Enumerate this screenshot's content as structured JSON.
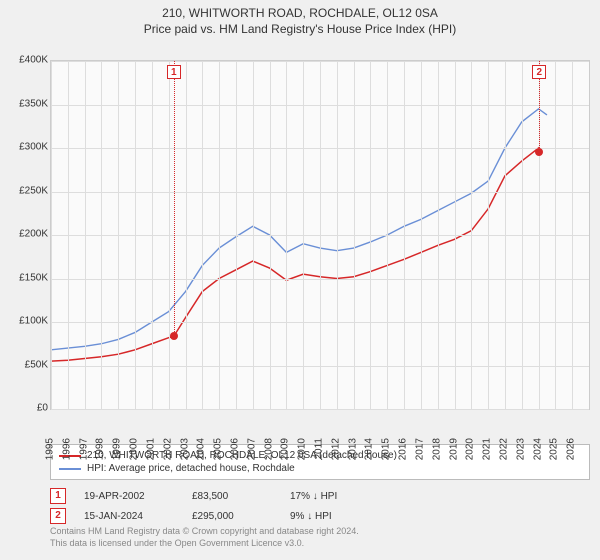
{
  "title_line1": "210, WHITWORTH ROAD, ROCHDALE, OL12 0SA",
  "title_line2": "Price paid vs. HM Land Registry's House Price Index (HPI)",
  "chart": {
    "type": "line",
    "background_color": "#fafafa",
    "grid_color": "#dddddd",
    "border_color": "#cccccc",
    "x_min": 1995,
    "x_max": 2027,
    "y_min": 0,
    "y_max": 400000,
    "y_ticks": [
      0,
      50000,
      100000,
      150000,
      200000,
      250000,
      300000,
      350000,
      400000
    ],
    "y_tick_labels": [
      "£0",
      "£50K",
      "£100K",
      "£150K",
      "£200K",
      "£250K",
      "£300K",
      "£350K",
      "£400K"
    ],
    "x_ticks": [
      1995,
      1996,
      1997,
      1998,
      1999,
      2000,
      2001,
      2002,
      2003,
      2004,
      2005,
      2006,
      2007,
      2008,
      2009,
      2010,
      2011,
      2012,
      2013,
      2014,
      2015,
      2016,
      2017,
      2018,
      2019,
      2020,
      2021,
      2022,
      2023,
      2024,
      2025,
      2026
    ],
    "series": [
      {
        "name": "subject",
        "color": "#d62728",
        "width": 1.5,
        "label": "210, WHITWORTH ROAD, ROCHDALE, OL12 0SA (detached house)",
        "x": [
          1995,
          1996,
          1997,
          1998,
          1999,
          2000,
          2001,
          2002,
          2002.3,
          2003,
          2004,
          2005,
          2006,
          2007,
          2008,
          2009,
          2010,
          2011,
          2012,
          2013,
          2014,
          2015,
          2016,
          2017,
          2018,
          2019,
          2020,
          2021,
          2022,
          2023,
          2024,
          2024.04
        ],
        "y": [
          55000,
          56000,
          58000,
          60000,
          63000,
          68000,
          75000,
          82000,
          83500,
          105000,
          135000,
          150000,
          160000,
          170000,
          162000,
          148000,
          155000,
          152000,
          150000,
          152000,
          158000,
          165000,
          172000,
          180000,
          188000,
          195000,
          205000,
          230000,
          268000,
          285000,
          300000,
          295000
        ]
      },
      {
        "name": "hpi",
        "color": "#6a8fd6",
        "width": 1.4,
        "label": "HPI: Average price, detached house, Rochdale",
        "x": [
          1995,
          1996,
          1997,
          1998,
          1999,
          2000,
          2001,
          2002,
          2003,
          2004,
          2005,
          2006,
          2007,
          2008,
          2009,
          2010,
          2011,
          2012,
          2013,
          2014,
          2015,
          2016,
          2017,
          2018,
          2019,
          2020,
          2021,
          2022,
          2023,
          2024,
          2024.5
        ],
        "y": [
          68000,
          70000,
          72000,
          75000,
          80000,
          88000,
          100000,
          112000,
          135000,
          165000,
          185000,
          198000,
          210000,
          200000,
          180000,
          190000,
          185000,
          182000,
          185000,
          192000,
          200000,
          210000,
          218000,
          228000,
          238000,
          248000,
          262000,
          300000,
          330000,
          345000,
          338000
        ]
      }
    ],
    "markers": [
      {
        "n": "1",
        "x": 2002.3,
        "y": 83500,
        "color": "#d62728"
      },
      {
        "n": "2",
        "x": 2024.04,
        "y": 295000,
        "color": "#d62728"
      }
    ]
  },
  "legend": {
    "items": [
      {
        "color": "#d62728",
        "label": "210, WHITWORTH ROAD, ROCHDALE, OL12 0SA (detached house)"
      },
      {
        "color": "#6a8fd6",
        "label": "HPI: Average price, detached house, Rochdale"
      }
    ]
  },
  "events": [
    {
      "n": "1",
      "color": "#d62728",
      "date": "19-APR-2002",
      "price": "£83,500",
      "delta": "17% ↓ HPI"
    },
    {
      "n": "2",
      "color": "#d62728",
      "date": "15-JAN-2024",
      "price": "£295,000",
      "delta": "9% ↓ HPI"
    }
  ],
  "footer_line1": "Contains HM Land Registry data © Crown copyright and database right 2024.",
  "footer_line2": "This data is licensed under the Open Government Licence v3.0."
}
